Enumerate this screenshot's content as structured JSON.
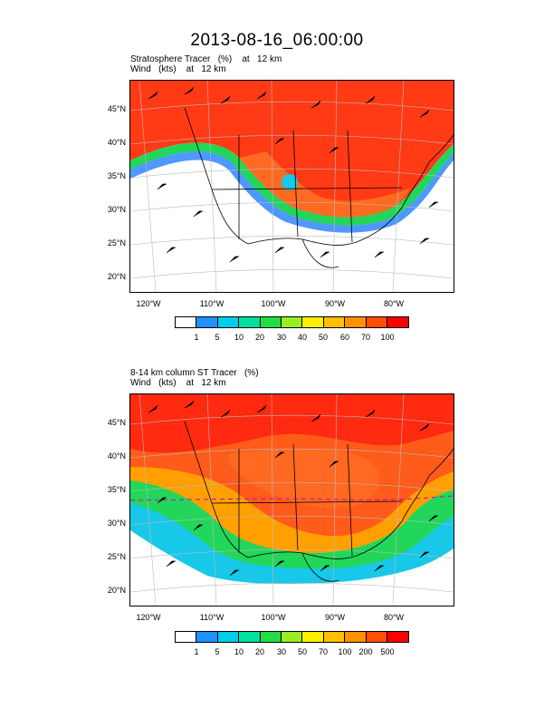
{
  "title": "2013-08-16_06:00:00",
  "panel1": {
    "line1": "Stratosphere Tracer   (%)    at   12 km",
    "line2": "Wind   (kts)    at   12 km",
    "colorbar_labels": [
      "1",
      "5",
      "10",
      "20",
      "30",
      "40",
      "50",
      "60",
      "70",
      "100"
    ]
  },
  "panel2": {
    "line1": "8-14 km column ST Tracer   (%)",
    "line2": "Wind   (kts)    at   12 km",
    "colorbar_labels": [
      "1",
      "5",
      "10",
      "20",
      "30",
      "50",
      "70",
      "100",
      "200",
      "500"
    ]
  },
  "lat_labels": [
    "45°N",
    "40°N",
    "35°N",
    "30°N",
    "25°N",
    "20°N"
  ],
  "lon_labels": [
    "120°W",
    "110°W",
    "100°W",
    "90°W",
    "80°W"
  ],
  "colorbar_colors": [
    "#ffffff",
    "#1e90ff",
    "#00ccee",
    "#00e0a0",
    "#22dd44",
    "#99ee22",
    "#ffee00",
    "#ffc000",
    "#ff9000",
    "#ff5000",
    "#ff0000"
  ],
  "field_colors": {
    "high": "#ff2a0f",
    "orange": "#ff5b1a",
    "mid": "#ffa000",
    "green": "#22d65a",
    "cyan": "#18c8e8",
    "blue": "#2f86ff"
  }
}
